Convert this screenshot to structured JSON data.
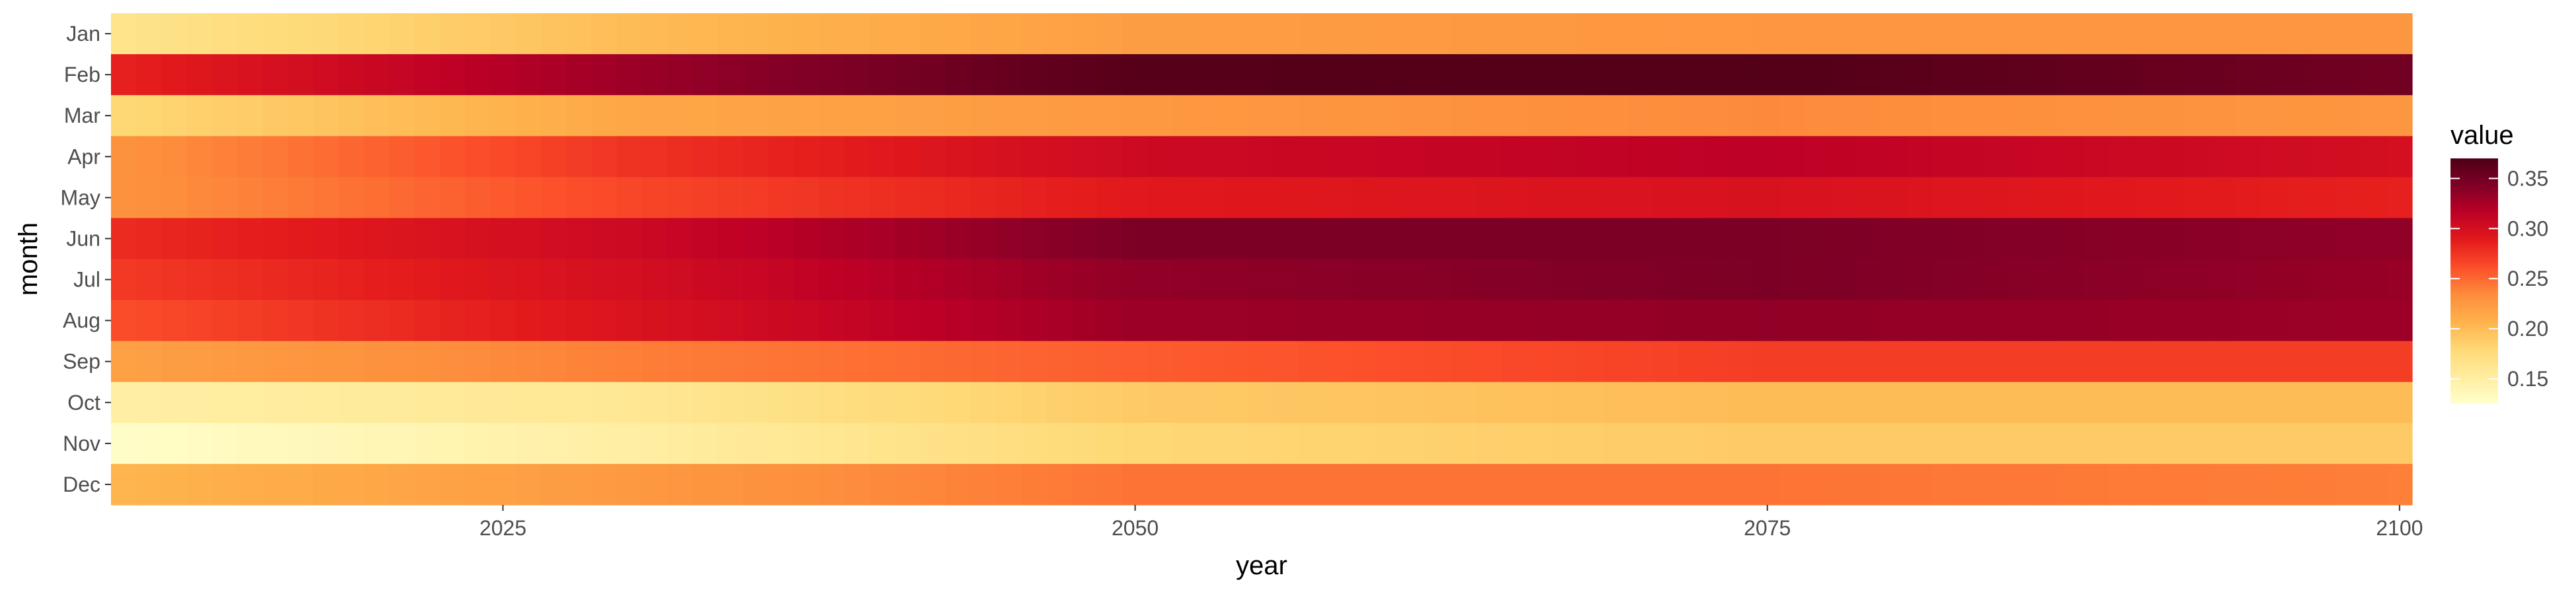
{
  "chart_data": {
    "type": "heatmap",
    "title": "",
    "xlabel": "year",
    "ylabel": "month",
    "legend_title": "value",
    "legend_position": "right",
    "x_start": 2010,
    "x_end": 2100,
    "x_ticks": [
      2025,
      2050,
      2075,
      2100
    ],
    "x_tick_labels": [
      "2025",
      "2050",
      "2075",
      "2100"
    ],
    "months": [
      "Jan",
      "Feb",
      "Mar",
      "Apr",
      "May",
      "Jun",
      "Jul",
      "Aug",
      "Sep",
      "Oct",
      "Nov",
      "Dec"
    ],
    "color_range": [
      0.125,
      0.37
    ],
    "colorbar_ticks": [
      0.15,
      0.2,
      0.25,
      0.3,
      0.35
    ],
    "colorbar_tick_labels": [
      "0.15",
      "0.20",
      "0.25",
      "0.30",
      "0.35"
    ],
    "colors": [
      "#ffffcc",
      "#ffeda0",
      "#fed976",
      "#feb24c",
      "#fd8d3c",
      "#fc4e2a",
      "#e31a1c",
      "#bd0026",
      "#800026",
      "#4d0016"
    ],
    "month_profiles": {
      "Jan": {
        "years": [
          2010,
          2030,
          2050,
          2075,
          2100
        ],
        "values": [
          0.165,
          0.2,
          0.222,
          0.227,
          0.227
        ]
      },
      "Feb": {
        "years": [
          2010,
          2030,
          2050,
          2075,
          2100
        ],
        "values": [
          0.285,
          0.33,
          0.365,
          0.367,
          0.35
        ]
      },
      "Mar": {
        "years": [
          2010,
          2030,
          2050,
          2075,
          2100
        ],
        "values": [
          0.18,
          0.215,
          0.225,
          0.235,
          0.227
        ]
      },
      "Apr": {
        "years": [
          2010,
          2030,
          2050,
          2075,
          2100
        ],
        "values": [
          0.23,
          0.275,
          0.305,
          0.315,
          0.3
        ]
      },
      "May": {
        "years": [
          2010,
          2030,
          2050,
          2075,
          2100
        ],
        "values": [
          0.23,
          0.265,
          0.29,
          0.297,
          0.285
        ]
      },
      "Jun": {
        "years": [
          2010,
          2030,
          2050,
          2075,
          2100
        ],
        "values": [
          0.28,
          0.305,
          0.345,
          0.345,
          0.335
        ]
      },
      "Jul": {
        "years": [
          2010,
          2030,
          2050,
          2075,
          2100
        ],
        "values": [
          0.272,
          0.3,
          0.335,
          0.345,
          0.332
        ]
      },
      "Aug": {
        "years": [
          2010,
          2030,
          2050,
          2075,
          2100
        ],
        "values": [
          0.262,
          0.295,
          0.33,
          0.335,
          0.33
        ]
      },
      "Sep": {
        "years": [
          2010,
          2030,
          2050,
          2075,
          2100
        ],
        "values": [
          0.22,
          0.24,
          0.255,
          0.27,
          0.27
        ]
      },
      "Oct": {
        "years": [
          2010,
          2030,
          2050,
          2075,
          2100
        ],
        "values": [
          0.15,
          0.16,
          0.19,
          0.2,
          0.2
        ]
      },
      "Nov": {
        "years": [
          2010,
          2030,
          2050,
          2075,
          2100
        ],
        "values": [
          0.128,
          0.15,
          0.18,
          0.19,
          0.19
        ]
      },
      "Dec": {
        "years": [
          2010,
          2030,
          2050,
          2075,
          2100
        ],
        "values": [
          0.205,
          0.225,
          0.245,
          0.245,
          0.24
        ]
      }
    }
  }
}
